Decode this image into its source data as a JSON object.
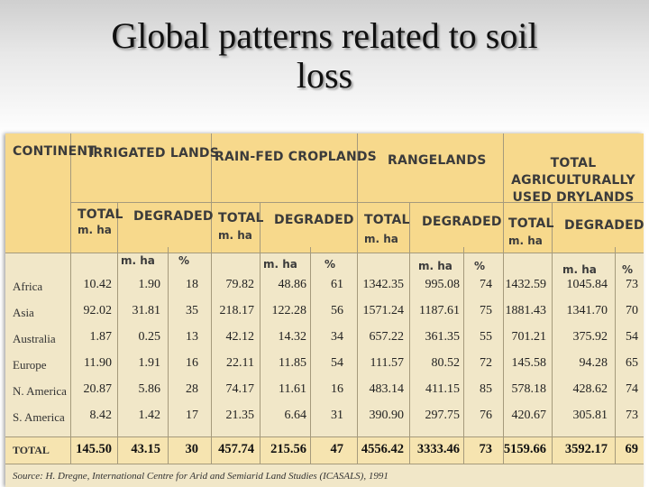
{
  "slide": {
    "title_line1": "Global patterns related to soil",
    "title_line2": "loss"
  },
  "table": {
    "headers": {
      "continent": "CONTINENT",
      "irrigated": "IRRIGATED LANDS",
      "rainfed": "RAIN-FED CROPLANDS",
      "rangelands": "RANGELANDS",
      "drylands_1": "TOTAL",
      "drylands_2": "AGRICULTURALLY",
      "drylands_3": "USED DRYLANDS",
      "total": "TOTAL",
      "degraded": "DEGRADED",
      "mha": "m. ha",
      "pct": "%"
    },
    "rows": [
      {
        "name": "Africa",
        "v": [
          "10.42",
          "1.90",
          "18",
          "79.82",
          "48.86",
          "61",
          "1342.35",
          "995.08",
          "74",
          "1432.59",
          "1045.84",
          "73"
        ]
      },
      {
        "name": "Asia",
        "v": [
          "92.02",
          "31.81",
          "35",
          "218.17",
          "122.28",
          "56",
          "1571.24",
          "1187.61",
          "75",
          "1881.43",
          "1341.70",
          "70"
        ]
      },
      {
        "name": "Australia",
        "v": [
          "1.87",
          "0.25",
          "13",
          "42.12",
          "14.32",
          "34",
          "657.22",
          "361.35",
          "55",
          "701.21",
          "375.92",
          "54"
        ]
      },
      {
        "name": "Europe",
        "v": [
          "11.90",
          "1.91",
          "16",
          "22.11",
          "11.85",
          "54",
          "111.57",
          "80.52",
          "72",
          "145.58",
          "94.28",
          "65"
        ]
      },
      {
        "name": "N. America",
        "v": [
          "20.87",
          "5.86",
          "28",
          "74.17",
          "11.61",
          "16",
          "483.14",
          "411.15",
          "85",
          "578.18",
          "428.62",
          "74"
        ]
      },
      {
        "name": "S. America",
        "v": [
          "8.42",
          "1.42",
          "17",
          "21.35",
          "6.64",
          "31",
          "390.90",
          "297.75",
          "76",
          "420.67",
          "305.81",
          "73"
        ]
      }
    ],
    "total_row": {
      "name": "TOTAL",
      "v": [
        "145.50",
        "43.15",
        "30",
        "457.74",
        "215.56",
        "47",
        "4556.42",
        "3333.46",
        "73",
        "5159.66",
        "3592.17",
        "69"
      ]
    },
    "source": "Source: H. Dregne, International Centre for Arid and Semiarid Land Studies (ICASALS), 1991"
  }
}
